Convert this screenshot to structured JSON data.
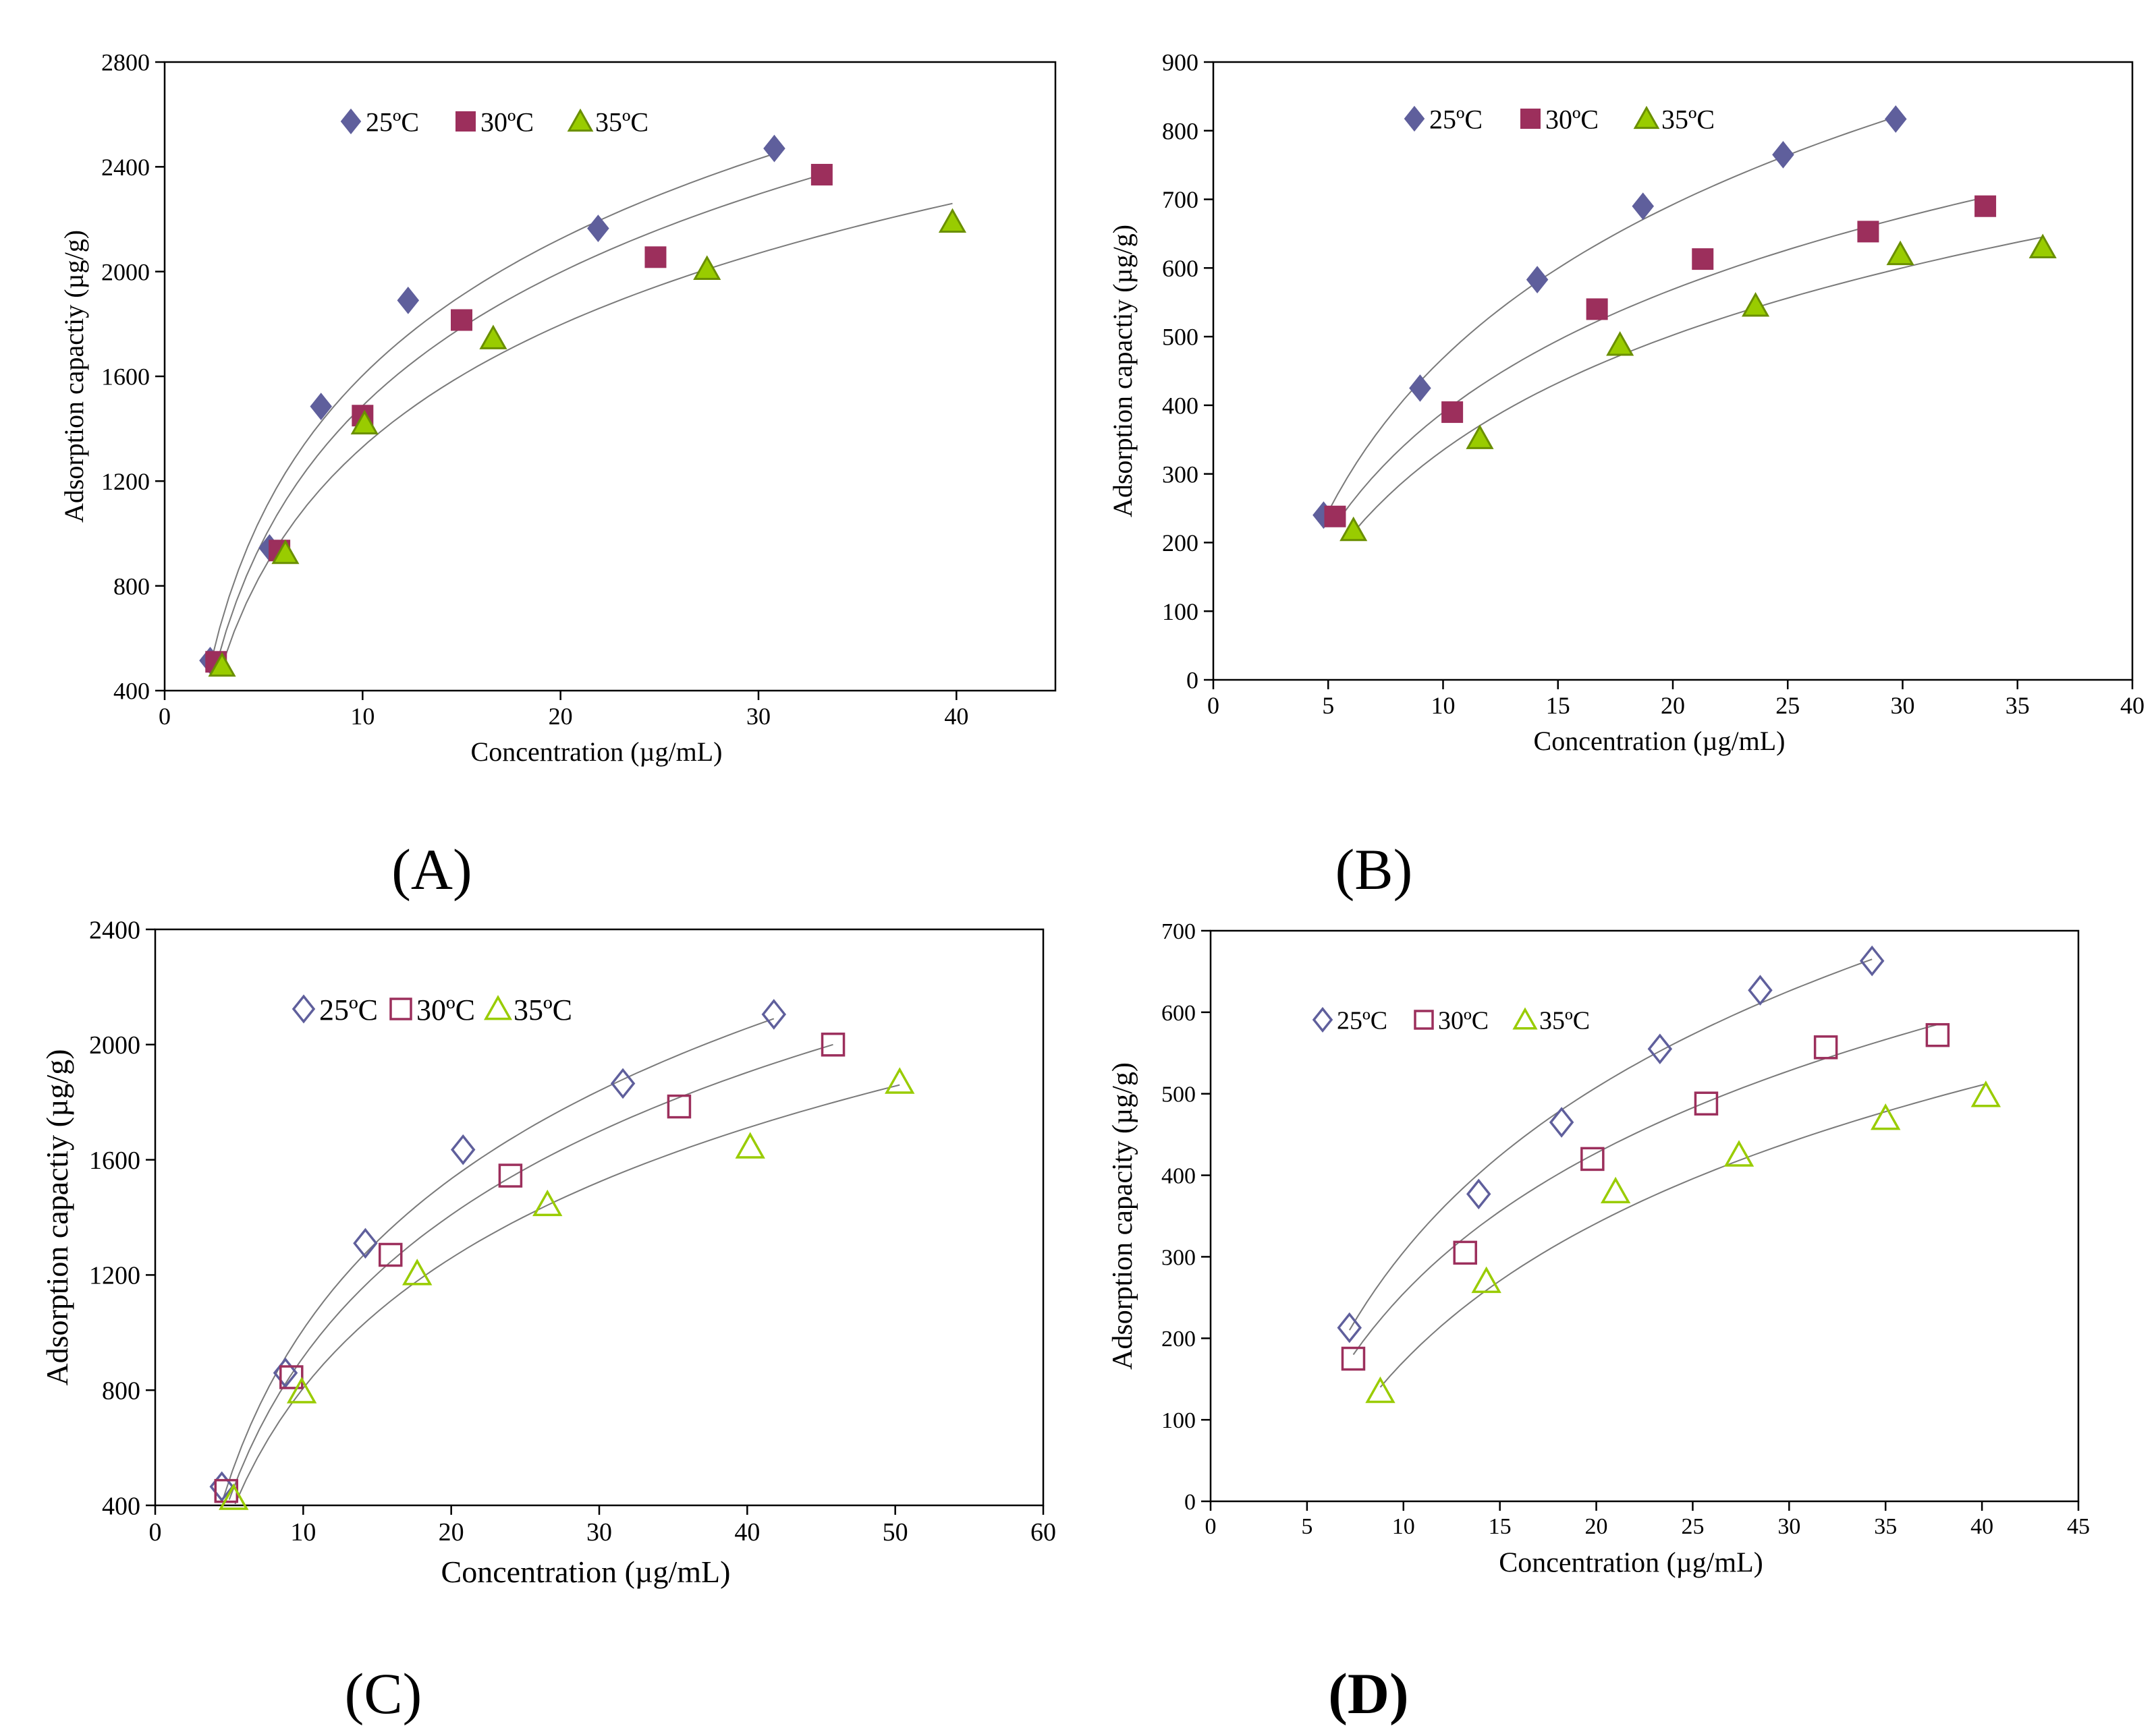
{
  "colors": {
    "series_25": "#5F5F9C",
    "series_30": "#9C2F5C",
    "series_35": "#99CC00",
    "fit_line": "#7a7a7a",
    "axis": "#000000"
  },
  "chart_data": [
    {
      "id": "A",
      "type": "scatter",
      "panel_label": "(A)",
      "xlabel": "Concentration (µg/mL)",
      "ylabel": "Adsorption capactiy (µg/g)",
      "xlim": [
        0,
        45
      ],
      "ylim": [
        400,
        2800
      ],
      "xticks": [
        0,
        10,
        20,
        30,
        40
      ],
      "yticks": [
        400,
        800,
        1200,
        1600,
        2000,
        2400,
        2800
      ],
      "marker_fill": "filled",
      "legend_placement": "top-center",
      "series": [
        {
          "name": "25ºC",
          "marker": "diamond",
          "color_key": "series_25",
          "x": [
            2.3,
            5.3,
            7.9,
            12.3,
            21.9,
            30.8
          ],
          "y": [
            515,
            945,
            1485,
            1890,
            2165,
            2470
          ]
        },
        {
          "name": "30ºC",
          "marker": "square",
          "color_key": "series_30",
          "x": [
            2.6,
            5.8,
            10.0,
            15.0,
            24.8,
            33.2
          ],
          "y": [
            510,
            935,
            1450,
            1815,
            2055,
            2370
          ]
        },
        {
          "name": "35ºC",
          "marker": "triangle",
          "color_key": "series_35",
          "x": [
            2.9,
            6.1,
            10.1,
            16.6,
            27.4,
            39.8
          ],
          "y": [
            495,
            925,
            1420,
            1745,
            2010,
            2190
          ]
        }
      ],
      "fits": [
        {
          "a": 2.3,
          "b": 497,
          "c": 30.8,
          "d": 2450
        },
        {
          "a": 2.6,
          "b": 497,
          "c": 33.2,
          "d": 2370
        },
        {
          "a": 2.9,
          "b": 497,
          "c": 39.8,
          "d": 2260
        }
      ]
    },
    {
      "id": "B",
      "type": "scatter",
      "panel_label": "(B)",
      "xlabel": "Concentration (µg/mL)",
      "ylabel": "Adsorption capactiy (µg/g)",
      "xlim": [
        0,
        40
      ],
      "ylim": [
        0,
        900
      ],
      "xticks": [
        0,
        5,
        10,
        15,
        20,
        25,
        30,
        35,
        40
      ],
      "yticks": [
        0,
        100,
        200,
        300,
        400,
        500,
        600,
        700,
        800,
        900
      ],
      "marker_fill": "filled",
      "legend_placement": "top-center",
      "series": [
        {
          "name": "25ºC",
          "marker": "diamond",
          "color_key": "series_25",
          "x": [
            4.8,
            9.0,
            14.1,
            18.7,
            24.8,
            29.7
          ],
          "y": [
            240,
            425,
            583,
            690,
            765,
            817
          ]
        },
        {
          "name": "30ºC",
          "marker": "square",
          "color_key": "series_30",
          "x": [
            5.3,
            10.4,
            16.7,
            21.3,
            28.5,
            33.6
          ],
          "y": [
            238,
            390,
            540,
            613,
            653,
            690
          ]
        },
        {
          "name": "35ºC",
          "marker": "triangle",
          "color_key": "series_35",
          "x": [
            6.1,
            11.6,
            17.7,
            23.6,
            29.9,
            36.1
          ],
          "y": [
            218,
            352,
            488,
            545,
            620,
            630
          ]
        }
      ],
      "fits": [
        {
          "a": 5.0,
          "b": 245,
          "c": 29.7,
          "d": 820
        },
        {
          "a": 5.5,
          "b": 235,
          "c": 33.6,
          "d": 703
        },
        {
          "a": 6.1,
          "b": 215,
          "c": 36.1,
          "d": 645
        }
      ]
    },
    {
      "id": "C",
      "type": "scatter",
      "panel_label": "(C)",
      "xlabel": "Concentration (µg/mL)",
      "ylabel": "Adsorption capactiy (µg/g)",
      "xlim": [
        0,
        60
      ],
      "ylim": [
        400,
        2400
      ],
      "xticks": [
        0,
        10,
        20,
        30,
        40,
        50,
        60
      ],
      "yticks": [
        400,
        800,
        1200,
        1600,
        2000,
        2400
      ],
      "marker_fill": "hollow",
      "legend_placement": "top-left",
      "series": [
        {
          "name": "25ºC",
          "marker": "diamond",
          "color_key": "series_25",
          "x": [
            4.5,
            8.8,
            14.2,
            20.8,
            31.6,
            41.8
          ],
          "y": [
            465,
            860,
            1310,
            1635,
            1865,
            2105
          ]
        },
        {
          "name": "30ºC",
          "marker": "square",
          "color_key": "series_30",
          "x": [
            4.8,
            9.2,
            15.9,
            24.0,
            35.4,
            45.8
          ],
          "y": [
            450,
            845,
            1270,
            1545,
            1785,
            2000
          ]
        },
        {
          "name": "35ºC",
          "marker": "triangle",
          "color_key": "series_35",
          "x": [
            5.3,
            9.9,
            17.7,
            26.5,
            40.2,
            50.3
          ],
          "y": [
            425,
            795,
            1205,
            1445,
            1645,
            1870
          ]
        }
      ],
      "fits": [
        {
          "a": 4.6,
          "b": 425,
          "c": 41.8,
          "d": 2090
        },
        {
          "a": 5.0,
          "b": 420,
          "c": 45.8,
          "d": 2000
        },
        {
          "a": 5.4,
          "b": 405,
          "c": 50.3,
          "d": 1860
        }
      ]
    },
    {
      "id": "D",
      "type": "scatter",
      "panel_label": "(D)",
      "xlabel": "Concentration (µg/mL)",
      "ylabel": "Adsorption capacity (µg/g)",
      "xlim": [
        0,
        45
      ],
      "ylim": [
        0,
        700
      ],
      "xticks": [
        0,
        5,
        10,
        15,
        20,
        25,
        30,
        35,
        40,
        45
      ],
      "yticks": [
        0,
        100,
        200,
        300,
        400,
        500,
        600,
        700
      ],
      "marker_fill": "hollow",
      "legend_placement": "top-left",
      "series": [
        {
          "name": "25ºC",
          "marker": "diamond",
          "color_key": "series_25",
          "x": [
            7.2,
            13.9,
            18.2,
            23.3,
            28.5,
            34.3
          ],
          "y": [
            213,
            377,
            465,
            555,
            627,
            663
          ]
        },
        {
          "name": "30ºC",
          "marker": "square",
          "color_key": "series_30",
          "x": [
            7.4,
            13.2,
            19.8,
            25.7,
            31.9,
            37.7
          ],
          "y": [
            175,
            305,
            420,
            488,
            557,
            572
          ]
        },
        {
          "name": "35ºC",
          "marker": "triangle",
          "color_key": "series_35",
          "x": [
            8.8,
            14.3,
            21.0,
            27.4,
            35.0,
            40.2
          ],
          "y": [
            135,
            270,
            380,
            425,
            470,
            498
          ]
        }
      ],
      "fits": [
        {
          "a": 7.2,
          "b": 210,
          "c": 34.3,
          "d": 665
        },
        {
          "a": 7.4,
          "b": 180,
          "c": 37.7,
          "d": 585
        },
        {
          "a": 8.8,
          "b": 140,
          "c": 40.2,
          "d": 512
        }
      ]
    }
  ]
}
